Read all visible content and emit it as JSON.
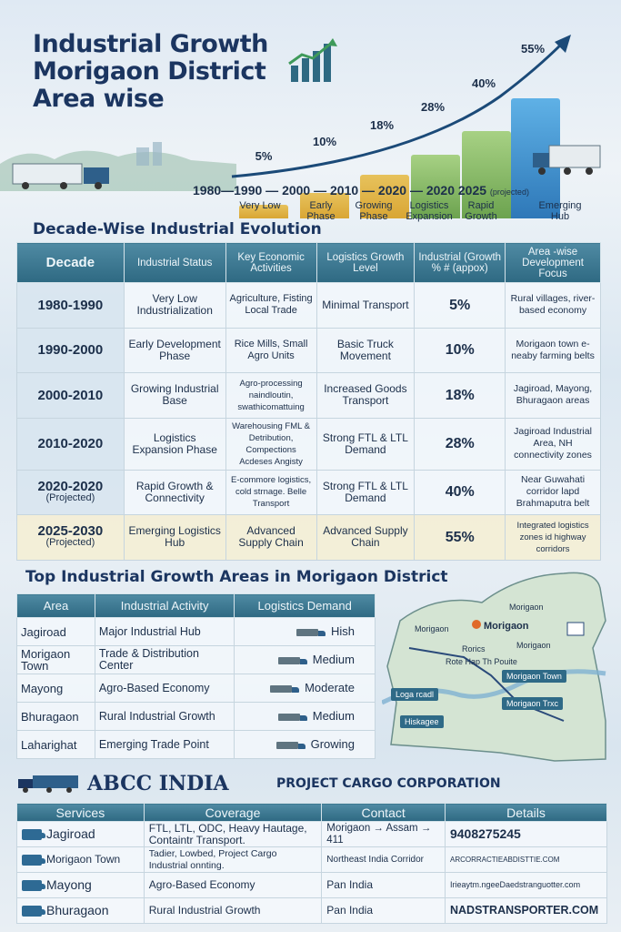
{
  "header": {
    "title_line1": "Industrial Growth",
    "title_line2": "Morigaon District",
    "title_line3": "Area wise",
    "icon": "growth-chart-icon"
  },
  "hero_chart": {
    "bars": [
      {
        "label": "5%",
        "value": 5
      },
      {
        "label": "10%",
        "value": 10
      },
      {
        "label": "18%",
        "value": 18
      },
      {
        "label": "28%",
        "value": 28
      },
      {
        "label": "40%",
        "value": 40
      },
      {
        "label": "55%",
        "value": 55
      }
    ],
    "timeline": "1980—1990 — 2000 — 2010 — 2020 — 2020   2025",
    "projected": "(projected)",
    "phases": [
      "Very Low",
      "Early Phase",
      "Growing Phase",
      "Logistics Expansion",
      "Rapid Growth",
      "Emerging Hub"
    ]
  },
  "decade_section": {
    "title": "Decade-Wise Industrial Evolution",
    "headers": [
      "Decade",
      "Industrial Status",
      "Key Economic Activities",
      "Logistics Growth Level",
      "Industrial (Growth % # (appox)",
      "Area -wise Development Focus"
    ],
    "rows": [
      {
        "decade": "1980-1990",
        "sub": "",
        "status": "Very Low Industrialization",
        "activities": "Agriculture, Fisting Local Trade",
        "logistics": "Minimal Transport",
        "growth": "5%",
        "focus": "Rural villages, river-based economy"
      },
      {
        "decade": "1990-2000",
        "sub": "",
        "status": "Early Development Phase",
        "activities": "Rice Mills, Small Agro Units",
        "logistics": "Basic Truck Movement",
        "growth": "10%",
        "focus": "Morigaon town e-neaby farming belts"
      },
      {
        "decade": "2000-2010",
        "sub": "",
        "status": "Growing Industrial Base",
        "activities": "Agro-processing naindloutin, swathicomattuing",
        "logistics": "Increased Goods Transport",
        "growth": "18%",
        "focus": "Jagiroad, Mayong, Bhuragaon areas"
      },
      {
        "decade": "2010-2020",
        "sub": "",
        "status": "Logistics Expansion Phase",
        "activities": "Warehousing FML & Detribution, Compections Acdeses Angisty",
        "logistics": "Strong FTL & LTL Demand",
        "growth": "28%",
        "focus": "Jagiroad Industrial Area, NH connectivity zones"
      },
      {
        "decade": "2020-2020",
        "sub": "(Projected)",
        "status": "Rapid Growth & Connectivity",
        "activities": "E-commore logistics, cold strnage. Belle Transport",
        "logistics": "Strong FTL & LTL Demand",
        "growth": "40%",
        "focus": "Near Guwahati corridor lapd Brahmaputra belt"
      },
      {
        "decade": "2025-2030",
        "sub": "(Projected)",
        "status": "Emerging Logistics Hub",
        "activities": "Advanced Supply Chain",
        "logistics": "Advanced Supply Chain",
        "growth": "55%",
        "focus": "Integrated logistics zones id highway corridors"
      }
    ]
  },
  "areas_section": {
    "title": "Top Industrial Growth Areas in Morigaon District",
    "headers": [
      "Area",
      "Industrial Activity",
      "Logistics Demand"
    ],
    "rows": [
      {
        "area": "Jagiroad",
        "activity": "Major Industrial Hub",
        "demand": "Hish"
      },
      {
        "area": "Morigaon Town",
        "activity": "Trade & Distribution Center",
        "demand": "Medium"
      },
      {
        "area": "Mayong",
        "activity": "Agro-Based Economy",
        "demand": "Moderate"
      },
      {
        "area": "Bhuragaon",
        "activity": "Rural Industrial Growth",
        "demand": "Medium"
      },
      {
        "area": "Laharighat",
        "activity": "Emerging Trade Point",
        "demand": "Growing"
      }
    ]
  },
  "map": {
    "labels": [
      "Morigaon",
      "Morigaon",
      "Morigaon",
      "Morigaon",
      "Rorics",
      "Rote Hap Th Pouite"
    ],
    "tags": [
      "Morigaon Town",
      "Morigaon Trxc",
      "Loga rcadl",
      "Hiskagee"
    ]
  },
  "brand": {
    "name": "ABCC INDIA",
    "subtitle": "PROJECT CARGO CORPORATION"
  },
  "services_section": {
    "headers": [
      "Services",
      "Coverage",
      "Contact",
      "Details"
    ],
    "rows": [
      {
        "service": "Jagiroad",
        "coverage": "FTL, LTL, ODC, Heavy Hautage, Containtr Transport.",
        "contact": "Morigaon → Assam → 411",
        "details": "9408275245"
      },
      {
        "service": "Morigaon Town",
        "coverage": "Tadier, Lowbed, Project Cargo Industrial onnting.",
        "contact": "Northeast India Corridor",
        "details": "ARCORRACTIEABDISTTIE.COM"
      },
      {
        "service": "Mayong",
        "coverage": "Agro-Based Economy",
        "contact": "Pan India",
        "details": "Irieaytm.ngeeDaedstranguotter.com"
      },
      {
        "service": "Bhuragaon",
        "coverage": "Rural Industrial Growth",
        "contact": "Pan India",
        "details": "NADSTRANSPORTER.COM"
      }
    ]
  },
  "colors": {
    "header_teal": "#2e6982",
    "title_navy": "#1b3560",
    "bar_gold": "#d9a634",
    "bar_green": "#6ca34f",
    "bar_blue": "#2e78b8"
  }
}
